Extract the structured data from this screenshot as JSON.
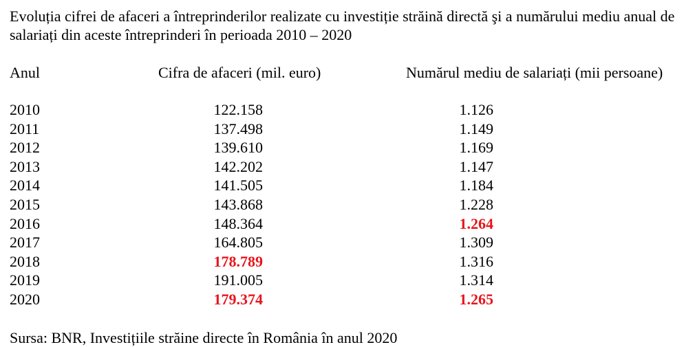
{
  "title": "Evoluția cifrei de afaceri a întreprinderilor realizate cu investiție străină directă şi a numărului mediu anual de salariați din aceste întreprinderi în perioada 2010 – 2020",
  "columns": {
    "year": "Anul",
    "turnover": "Cifra de afaceri (mil. euro)",
    "employees": "Numărul mediu de salariați (mii persoane)"
  },
  "highlight_color": "#e8141b",
  "rows": [
    {
      "year": "2010",
      "turnover": "122.158",
      "employees": "1.126",
      "turnover_hl": false,
      "employees_hl": false
    },
    {
      "year": "2011",
      "turnover": "137.498",
      "employees": "1.149",
      "turnover_hl": false,
      "employees_hl": false
    },
    {
      "year": "2012",
      "turnover": "139.610",
      "employees": "1.169",
      "turnover_hl": false,
      "employees_hl": false
    },
    {
      "year": "2013",
      "turnover": "142.202",
      "employees": "1.147",
      "turnover_hl": false,
      "employees_hl": false
    },
    {
      "year": "2014",
      "turnover": "141.505",
      "employees": "1.184",
      "turnover_hl": false,
      "employees_hl": false
    },
    {
      "year": "2015",
      "turnover": "143.868",
      "employees": "1.228",
      "turnover_hl": false,
      "employees_hl": false
    },
    {
      "year": "2016",
      "turnover": "148.364",
      "employees": "1.264",
      "turnover_hl": false,
      "employees_hl": true
    },
    {
      "year": "2017",
      "turnover": "164.805",
      "employees": "1.309",
      "turnover_hl": false,
      "employees_hl": false
    },
    {
      "year": "2018",
      "turnover": "178.789",
      "employees": "1.316",
      "turnover_hl": true,
      "employees_hl": false
    },
    {
      "year": "2019",
      "turnover": "191.005",
      "employees": "1.314",
      "turnover_hl": false,
      "employees_hl": false
    },
    {
      "year": "2020",
      "turnover": "179.374",
      "employees": "1.265",
      "turnover_hl": true,
      "employees_hl": true
    }
  ],
  "source": "Sursa: BNR, Investițiile străine directe în România în anul 2020"
}
